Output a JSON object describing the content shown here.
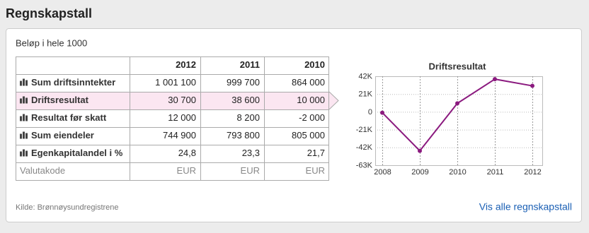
{
  "header": {
    "title": "Regnskapstall"
  },
  "note": "Beløp i hele 1000",
  "table": {
    "headers": [
      "2012",
      "2011",
      "2010"
    ],
    "rows": [
      [
        "Sum driftsinntekter",
        "1 001 100",
        "999 700",
        "864 000"
      ],
      [
        "Driftsresultat",
        "30 700",
        "38 600",
        "10 000"
      ],
      [
        "Resultat før skatt",
        "12 000",
        "8 200",
        "-2 000"
      ],
      [
        "Sum eiendeler",
        "744 900",
        "793 800",
        "805 000"
      ],
      [
        "Egenkapitalandel i %",
        "24,8",
        "23,3",
        "21,7"
      ],
      [
        "Valutakode",
        "EUR",
        "EUR",
        "EUR"
      ]
    ]
  },
  "chart_data": {
    "type": "line",
    "title": "Driftsresultat",
    "x": [
      2008,
      2009,
      2010,
      2011,
      2012
    ],
    "values": [
      -1000,
      -46000,
      10000,
      38600,
      30700
    ],
    "color": "#8b1a7f",
    "xlim": [
      2008,
      2012
    ],
    "xticks": [
      2008,
      2009,
      2010,
      2011,
      2012
    ],
    "ylim": [
      -63000,
      42000
    ],
    "yticks": [
      {
        "value": -63000,
        "label": "-63K"
      },
      {
        "value": -42000,
        "label": "-42K"
      },
      {
        "value": -21000,
        "label": "-21K"
      },
      0,
      {
        "value": 21000,
        "label": "21K"
      },
      {
        "value": 42000,
        "label": "42K"
      }
    ],
    "grid": true
  },
  "footer": {
    "source": "Kilde: Brønnøysundregistrene",
    "link": "Vis alle regnskapstall"
  }
}
